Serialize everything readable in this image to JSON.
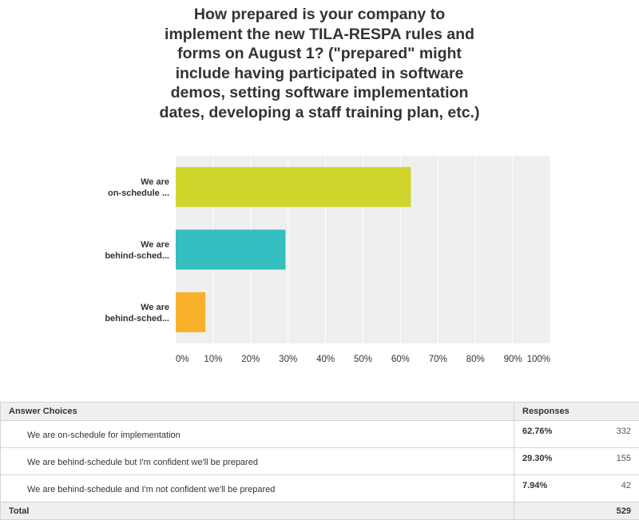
{
  "title_lines": [
    "How prepared is your company to",
    "implement the new TILA-RESPA rules and",
    "forms on August 1? (\"prepared\" might",
    "include having participated in software",
    "demos, setting software implementation",
    "dates, developing a staff training plan, etc.)"
  ],
  "chart_data": {
    "type": "bar",
    "orientation": "horizontal",
    "title": "How prepared is your company to implement the new TILA-RESPA rules and forms on August 1? (\"prepared\" might include having participated in software demos, setting software implementation dates, developing a staff training plan, etc.)",
    "categories": [
      [
        "We are",
        "on-schedule ..."
      ],
      [
        "We are",
        "behind-sched..."
      ],
      [
        "We are",
        "behind-sched..."
      ]
    ],
    "values": [
      62.76,
      29.3,
      7.94
    ],
    "colors": [
      "#cfd52a",
      "#35bfc0",
      "#f7b12a"
    ],
    "xlim": [
      0,
      100
    ],
    "xticks": [
      "0%",
      "10%",
      "20%",
      "30%",
      "40%",
      "50%",
      "60%",
      "70%",
      "80%",
      "90%",
      "100%"
    ],
    "grid": true,
    "xlabel": "",
    "ylabel": ""
  },
  "table": {
    "header_choices": "Answer Choices",
    "header_responses": "Responses",
    "rows": [
      {
        "choice": "We are on-schedule for implementation",
        "percent": "62.76%",
        "count": "332"
      },
      {
        "choice": "We are behind-schedule but I'm confident we'll be prepared",
        "percent": "29.30%",
        "count": "155"
      },
      {
        "choice": "We are behind-schedule and I'm not confident we'll be prepared",
        "percent": "7.94%",
        "count": "42"
      }
    ],
    "total_label": "Total",
    "total_count": "529"
  }
}
